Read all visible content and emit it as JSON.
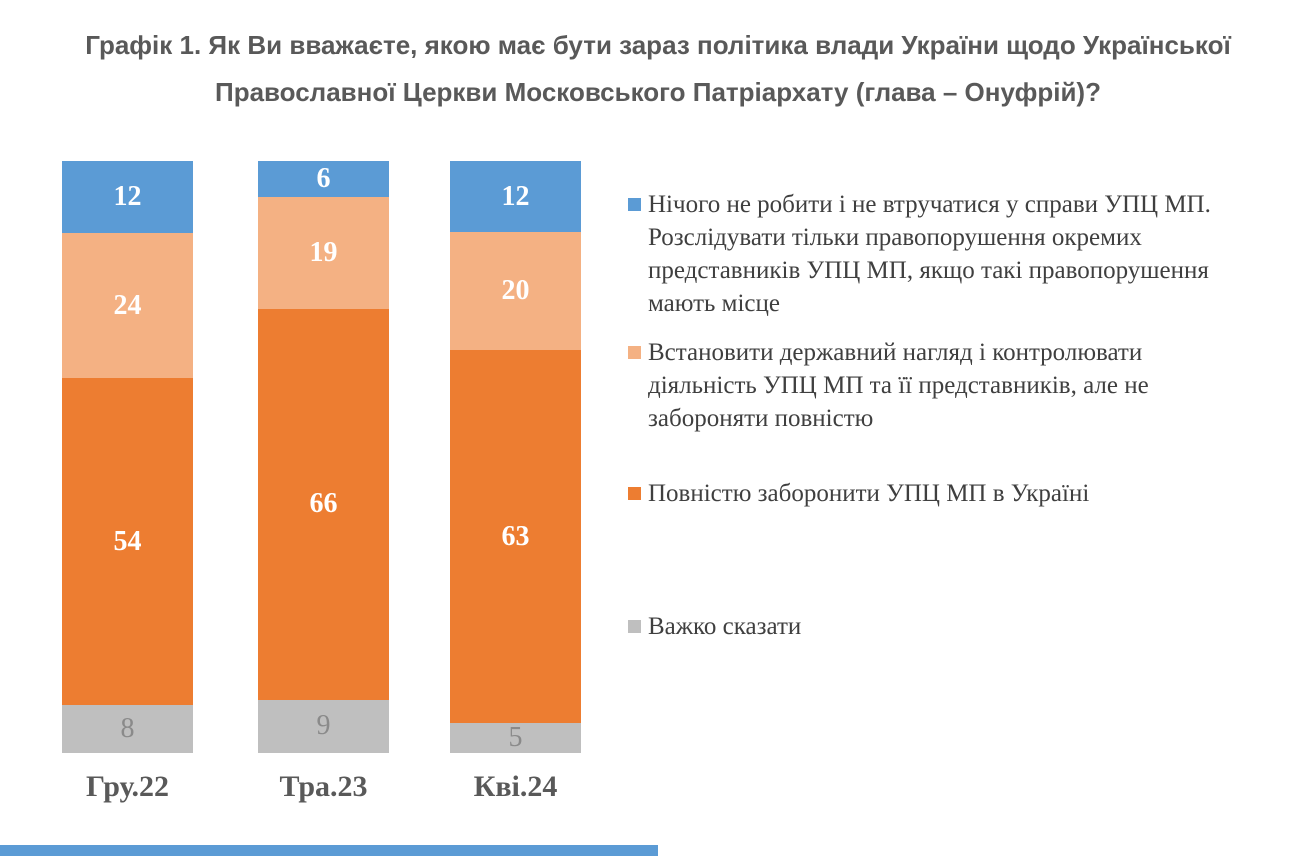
{
  "title": {
    "line1": "Графік 1. Як Ви вважаєте, якою має бути зараз політика влади України щодо Української",
    "line2": "Православної Церкви Московського Патріархату (глава – Онуфрій)?"
  },
  "chart_data": {
    "type": "bar",
    "variant": "stacked-percent-column",
    "title": "Графік 1. Як Ви вважаєте, якою має бути зараз політика влади України щодо Української Православної Церкви Московського Патріархату (глава – Онуфрій)?",
    "categories": [
      "Гру.22",
      "Тра.23",
      "Кві.24"
    ],
    "series": [
      {
        "name": "Нічого не робити і не втручатися у справи УПЦ МП. Розслідувати тільки правопорушення окремих представників УПЦ МП, якщо такі правопорушення мають місце",
        "color": "#5B9BD5",
        "values": [
          12,
          6,
          12
        ]
      },
      {
        "name": "Встановити державний нагляд і контролювати діяльність УПЦ МП та її представників, але не забороняти повністю",
        "color": "#F4B183",
        "values": [
          24,
          19,
          20
        ]
      },
      {
        "name": "Повністю заборонити УПЦ МП в Україні",
        "color": "#ED7D31",
        "values": [
          54,
          66,
          63
        ]
      },
      {
        "name": "Важко сказати",
        "color": "#BFBFBF",
        "values": [
          8,
          9,
          5
        ]
      }
    ],
    "value_labels": true,
    "value_label_color": "#ffffff",
    "gray_value_label_color": "#8a8a8a",
    "legend_position": "right",
    "axis": {
      "x_labels_color": "#595959",
      "gridlines": false,
      "y_axis_visible": false
    },
    "ylim": [
      0,
      100
    ]
  },
  "colors": {
    "title_text": "#595959",
    "legend_text": "#3f3f3f",
    "footer_accent": "#5B9BD5"
  }
}
